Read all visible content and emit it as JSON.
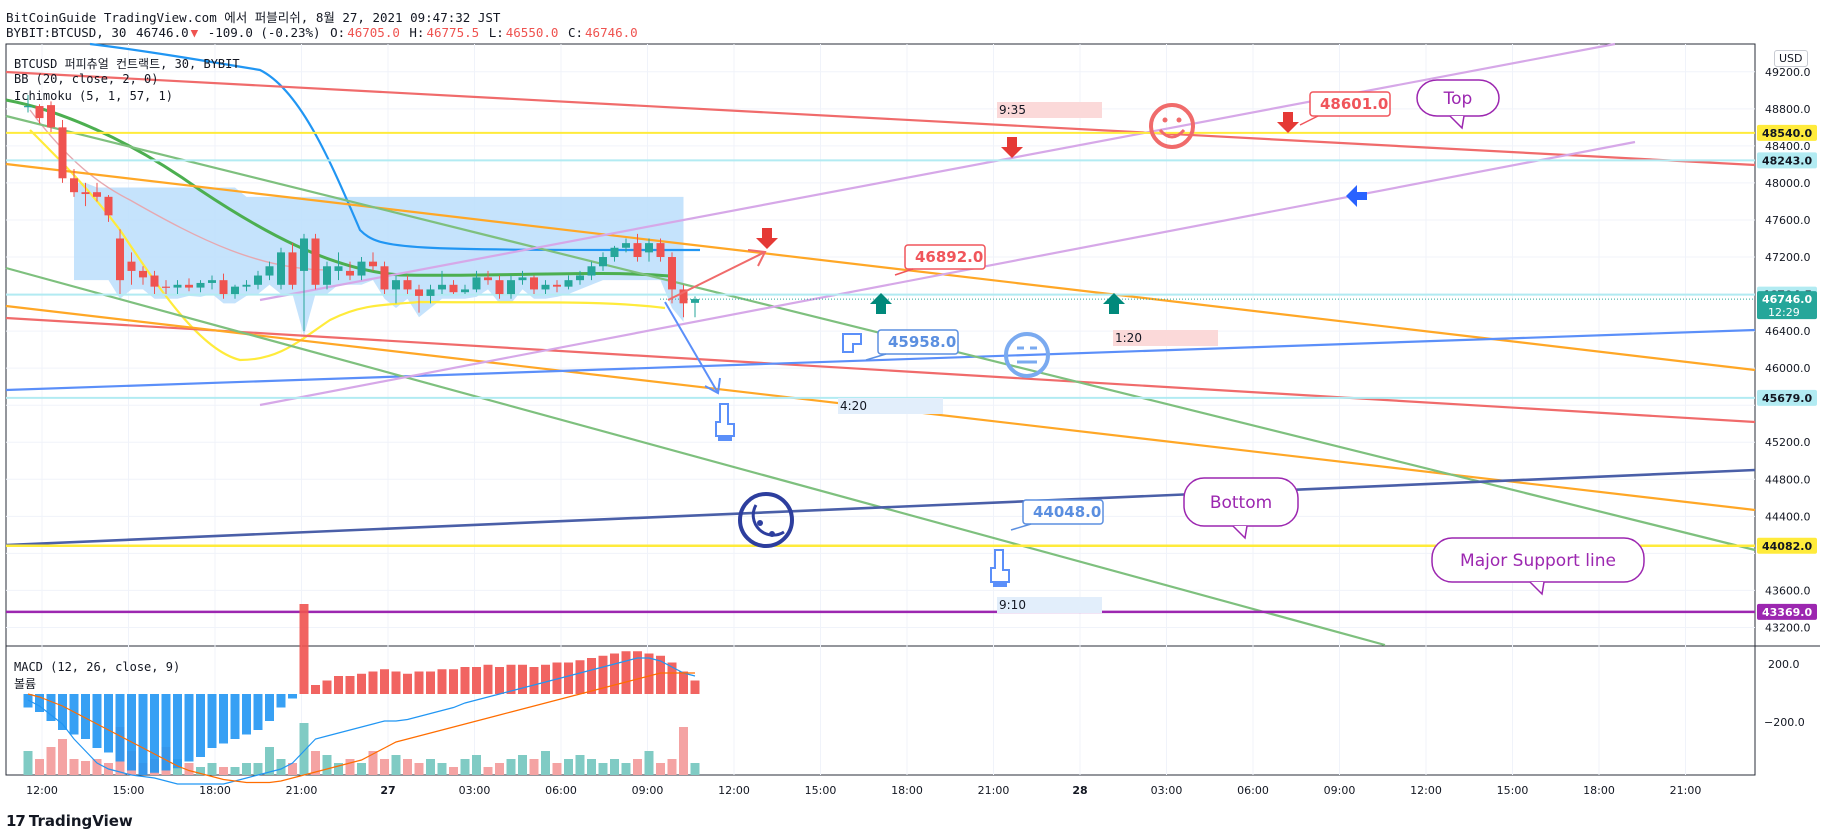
{
  "header": {
    "line1": "BitCoinGuide TradingView.com 에서 퍼블리쉬, 8월 27, 2021 09:47:32 JST",
    "symbol": "BYBIT:BTCUSD, 30",
    "price": "46746.0",
    "change_arrow": "▼",
    "change": "-109.0 (-0.23%)",
    "o_label": "O:",
    "o": "46705.0",
    "h_label": "H:",
    "h": "46775.5",
    "l_label": "L:",
    "l": "46550.0",
    "c_label": "C:",
    "c": "46746.0"
  },
  "legend": {
    "title": "BTCUSD 퍼피츄얼 컨트랙트, 30, BYBIT",
    "bb": "BB (20, close, 2, 0)",
    "ichimoku": "Ichimoku (5, 1, 57, 1)",
    "macd": "MACD (12, 26, close, 9)",
    "macd_sub": "볼륨"
  },
  "price_axis": {
    "currency": "USD",
    "ticks": [
      "49200.0",
      "48800.0",
      "48400.0",
      "48000.0",
      "47600.0",
      "47200.0",
      "46400.0",
      "46000.0",
      "45200.0",
      "44800.0",
      "44400.0",
      "43600.0",
      "43200.0"
    ],
    "markers": [
      {
        "label": "48540.0",
        "color": "#ffeb3b",
        "text_color": "#131722"
      },
      {
        "label": "48243.0",
        "color": "#b2ebf2",
        "text_color": "#131722"
      },
      {
        "label": "46794.5",
        "color": "#b2ebf2",
        "text_color": "#131722"
      },
      {
        "label": "46746.0",
        "color": "#26a69a",
        "text_color": "#ffffff",
        "sub": "12:29"
      },
      {
        "label": "45679.0",
        "color": "#b2ebf2",
        "text_color": "#131722"
      },
      {
        "label": "44082.0",
        "color": "#ffeb3b",
        "text_color": "#131722"
      },
      {
        "label": "43369.0",
        "color": "#9c27b0",
        "text_color": "#ffffff"
      }
    ]
  },
  "macd_axis": {
    "ticks": [
      "200.0",
      "−200.0"
    ]
  },
  "time_axis": {
    "ticks": [
      "12:00",
      "15:00",
      "18:00",
      "21:00",
      "27",
      "03:00",
      "06:00",
      "09:00",
      "12:00",
      "15:00",
      "18:00",
      "21:00",
      "28",
      "03:00",
      "06:00",
      "09:00",
      "12:00",
      "15:00",
      "18:00",
      "21:00"
    ]
  },
  "annotations": {
    "price_labels": [
      {
        "text": "48601.0",
        "color": "#f0555b"
      },
      {
        "text": "46892.0",
        "color": "#f0555b"
      },
      {
        "text": "45958.0",
        "color": "#5b8fe0"
      },
      {
        "text": "44048.0",
        "color": "#5b8fe0"
      }
    ],
    "time_boxes": [
      {
        "text": "9:35",
        "color": "#fbd9d9"
      },
      {
        "text": "1:20",
        "color": "#fbd9d9"
      },
      {
        "text": "4:20",
        "color": "#e2eefb"
      },
      {
        "text": "9:10",
        "color": "#e2eefb"
      }
    ],
    "callouts": [
      {
        "text": "Top",
        "color": "#9c27b0"
      },
      {
        "text": "Bottom",
        "color": "#9c27b0"
      },
      {
        "text": "Major Support line",
        "color": "#9c27b0"
      }
    ],
    "emoji_icons": [
      "smile-icon",
      "neutral-face-icon",
      "sleepy-moon-face-icon"
    ]
  },
  "colors": {
    "up": "#26a69a",
    "down": "#ef5350",
    "up_volume": "#80cbc4",
    "down_volume": "#f4a3a3",
    "ichimoku_cloud": "#bbdefb"
  },
  "footer": {
    "brand": "TradingView",
    "logo": "17"
  },
  "chart_data": {
    "type": "candlestick",
    "symbol": "BYBIT:BTCUSD",
    "interval": "30",
    "ylim": [
      43000,
      49500
    ],
    "candles": [
      {
        "o": 48820,
        "h": 48950,
        "l": 48760,
        "c": 48830
      },
      {
        "o": 48830,
        "h": 48850,
        "l": 48640,
        "c": 48700
      },
      {
        "o": 48840,
        "h": 48880,
        "l": 48550,
        "c": 48600
      },
      {
        "o": 48600,
        "h": 48680,
        "l": 48000,
        "c": 48050
      },
      {
        "o": 48050,
        "h": 48150,
        "l": 47850,
        "c": 47900
      },
      {
        "o": 47900,
        "h": 48000,
        "l": 47750,
        "c": 47880
      },
      {
        "o": 47900,
        "h": 48000,
        "l": 47800,
        "c": 47850
      },
      {
        "o": 47850,
        "h": 47870,
        "l": 47580,
        "c": 47650
      },
      {
        "o": 47400,
        "h": 47500,
        "l": 46800,
        "c": 46950
      },
      {
        "o": 47150,
        "h": 47250,
        "l": 46900,
        "c": 47050
      },
      {
        "o": 47050,
        "h": 47100,
        "l": 46900,
        "c": 46980
      },
      {
        "o": 47000,
        "h": 47050,
        "l": 46800,
        "c": 46880
      },
      {
        "o": 46880,
        "h": 46950,
        "l": 46800,
        "c": 46870
      },
      {
        "o": 46870,
        "h": 46950,
        "l": 46800,
        "c": 46900
      },
      {
        "o": 46900,
        "h": 46970,
        "l": 46830,
        "c": 46870
      },
      {
        "o": 46870,
        "h": 46950,
        "l": 46820,
        "c": 46920
      },
      {
        "o": 46920,
        "h": 47000,
        "l": 46850,
        "c": 46950
      },
      {
        "o": 46950,
        "h": 47020,
        "l": 46750,
        "c": 46800
      },
      {
        "o": 46800,
        "h": 46900,
        "l": 46750,
        "c": 46880
      },
      {
        "o": 46880,
        "h": 46950,
        "l": 46830,
        "c": 46900
      },
      {
        "o": 46900,
        "h": 47050,
        "l": 46850,
        "c": 47000
      },
      {
        "o": 47000,
        "h": 47150,
        "l": 46950,
        "c": 47100
      },
      {
        "o": 46900,
        "h": 47300,
        "l": 46850,
        "c": 47250
      },
      {
        "o": 47250,
        "h": 47350,
        "l": 46850,
        "c": 46900
      },
      {
        "o": 47050,
        "h": 47450,
        "l": 46400,
        "c": 47400
      },
      {
        "o": 47400,
        "h": 47450,
        "l": 46850,
        "c": 46900
      },
      {
        "o": 46900,
        "h": 47150,
        "l": 46850,
        "c": 47100
      },
      {
        "o": 47050,
        "h": 47250,
        "l": 46950,
        "c": 47100
      },
      {
        "o": 47050,
        "h": 47150,
        "l": 46950,
        "c": 47000
      },
      {
        "o": 47000,
        "h": 47200,
        "l": 46950,
        "c": 47150
      },
      {
        "o": 47150,
        "h": 47250,
        "l": 47050,
        "c": 47100
      },
      {
        "o": 47100,
        "h": 47150,
        "l": 46800,
        "c": 46850
      },
      {
        "o": 46850,
        "h": 47000,
        "l": 46700,
        "c": 46950
      },
      {
        "o": 46950,
        "h": 47000,
        "l": 46800,
        "c": 46850
      },
      {
        "o": 46850,
        "h": 46900,
        "l": 46600,
        "c": 46780
      },
      {
        "o": 46780,
        "h": 46900,
        "l": 46700,
        "c": 46850
      },
      {
        "o": 46850,
        "h": 47050,
        "l": 46800,
        "c": 46900
      },
      {
        "o": 46900,
        "h": 46950,
        "l": 46800,
        "c": 46820
      },
      {
        "o": 46820,
        "h": 46900,
        "l": 46800,
        "c": 46850
      },
      {
        "o": 46850,
        "h": 47050,
        "l": 46820,
        "c": 46980
      },
      {
        "o": 46980,
        "h": 47050,
        "l": 46900,
        "c": 46950
      },
      {
        "o": 46950,
        "h": 47000,
        "l": 46750,
        "c": 46800
      },
      {
        "o": 46800,
        "h": 47000,
        "l": 46750,
        "c": 46950
      },
      {
        "o": 46950,
        "h": 47050,
        "l": 46900,
        "c": 46980
      },
      {
        "o": 46980,
        "h": 47000,
        "l": 46800,
        "c": 46850
      },
      {
        "o": 46850,
        "h": 46950,
        "l": 46800,
        "c": 46900
      },
      {
        "o": 46900,
        "h": 46950,
        "l": 46820,
        "c": 46880
      },
      {
        "o": 46880,
        "h": 47000,
        "l": 46850,
        "c": 46950
      },
      {
        "o": 46950,
        "h": 47050,
        "l": 46900,
        "c": 47000
      },
      {
        "o": 47000,
        "h": 47150,
        "l": 46950,
        "c": 47100
      },
      {
        "o": 47100,
        "h": 47250,
        "l": 47050,
        "c": 47200
      },
      {
        "o": 47200,
        "h": 47320,
        "l": 47150,
        "c": 47300
      },
      {
        "o": 47300,
        "h": 47400,
        "l": 47250,
        "c": 47350
      },
      {
        "o": 47350,
        "h": 47450,
        "l": 47150,
        "c": 47200
      },
      {
        "o": 47250,
        "h": 47400,
        "l": 47150,
        "c": 47350
      },
      {
        "o": 47350,
        "h": 47400,
        "l": 47150,
        "c": 47200
      },
      {
        "o": 47200,
        "h": 47250,
        "l": 46700,
        "c": 46850
      },
      {
        "o": 46850,
        "h": 46900,
        "l": 46550,
        "c": 46700
      },
      {
        "o": 46705,
        "h": 46775.5,
        "l": 46550,
        "c": 46746
      }
    ],
    "volume": [
      60,
      40,
      70,
      90,
      40,
      35,
      40,
      30,
      120,
      60,
      30,
      40,
      70,
      40,
      30,
      20,
      30,
      20,
      20,
      30,
      30,
      70,
      40,
      30,
      130,
      60,
      50,
      30,
      40,
      30,
      60,
      40,
      50,
      40,
      30,
      40,
      30,
      20,
      40,
      50,
      20,
      30,
      40,
      50,
      40,
      60,
      30,
      40,
      50,
      40,
      30,
      40,
      30,
      40,
      60,
      30,
      40,
      120,
      30
    ],
    "macd_histogram": [
      -30,
      -40,
      -60,
      -80,
      -90,
      -100,
      -120,
      -130,
      -150,
      -170,
      -180,
      -175,
      -170,
      -165,
      -150,
      -140,
      -120,
      -110,
      -100,
      -90,
      -80,
      -60,
      -30,
      -10,
      200,
      20,
      30,
      40,
      40,
      45,
      50,
      55,
      50,
      45,
      50,
      50,
      55,
      55,
      60,
      60,
      65,
      60,
      65,
      65,
      60,
      65,
      70,
      70,
      75,
      80,
      85,
      90,
      95,
      95,
      90,
      85,
      70,
      50,
      30
    ],
    "macd_line": [
      -20,
      -40,
      -70,
      -100,
      -150,
      -190,
      -230,
      -250,
      -260,
      -270,
      -275,
      -280,
      -290,
      -300,
      -300,
      -300,
      -300,
      -300,
      -290,
      -280,
      -270,
      -260,
      -250,
      -230,
      -190,
      -150,
      -140,
      -130,
      -120,
      -110,
      -100,
      -90,
      -90,
      -85,
      -75,
      -65,
      -55,
      -45,
      -30,
      -20,
      -10,
      0,
      10,
      20,
      30,
      40,
      50,
      60,
      70,
      80,
      90,
      100,
      110,
      120,
      120,
      110,
      90,
      70,
      60
    ],
    "signal_line": [
      0,
      -10,
      -25,
      -40,
      -60,
      -80,
      -100,
      -120,
      -140,
      -160,
      -180,
      -200,
      -220,
      -240,
      -255,
      -265,
      -275,
      -285,
      -290,
      -295,
      -295,
      -295,
      -290,
      -280,
      -270,
      -260,
      -250,
      -240,
      -230,
      -220,
      -200,
      -180,
      -160,
      -150,
      -140,
      -130,
      -120,
      -110,
      -100,
      -90,
      -80,
      -70,
      -60,
      -50,
      -40,
      -30,
      -20,
      -10,
      0,
      10,
      20,
      30,
      40,
      50,
      60,
      70,
      70,
      70,
      70
    ],
    "trendlines_note": "",
    "grid": true,
    "legend": "top-left"
  }
}
